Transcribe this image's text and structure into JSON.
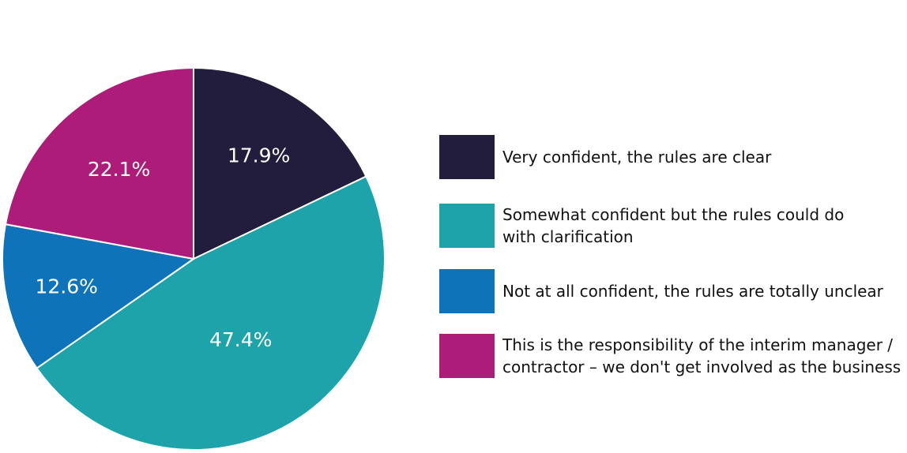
{
  "chart_data": {
    "type": "pie",
    "title": "",
    "start_angle": "top, clockwise",
    "slices": [
      {
        "label": "Very confident, the rules are clear",
        "value": 17.9,
        "value_label": "17.9%",
        "color": "#221c3d"
      },
      {
        "label": "Somewhat confident but the rules could do with clarification",
        "value": 47.4,
        "value_label": "47.4%",
        "color": "#1ea3ab"
      },
      {
        "label": "Not at all confident, the rules are totally unclear",
        "value": 12.6,
        "value_label": "12.6%",
        "color": "#0f73b9"
      },
      {
        "label": "This is the responsibility of the interim manager / contractor – we don't get involved as the business",
        "value": 22.1,
        "value_label": "22.1%",
        "color": "#ae1c7a"
      }
    ],
    "legend_position": "right"
  }
}
